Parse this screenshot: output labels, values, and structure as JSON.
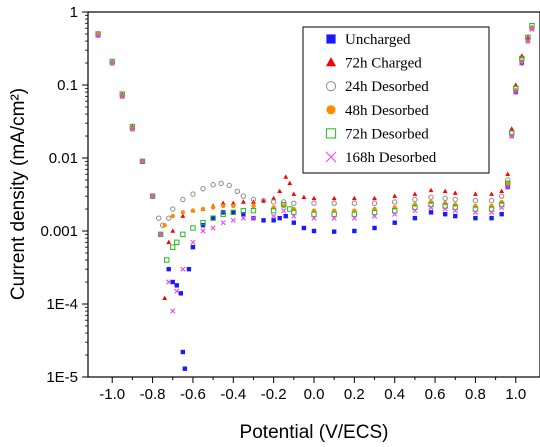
{
  "chart_data": {
    "type": "scatter",
    "xlabel": "Potential (V/ECS)",
    "ylabel": "Current density (mA/cm²)",
    "xlim": [
      -1.12,
      1.12
    ],
    "ylim": [
      1e-05,
      1
    ],
    "yscale": "log",
    "grid": false,
    "legend_position": "top-right",
    "xticks": [
      {
        "value": -1.0,
        "label": "-1.0"
      },
      {
        "value": -0.8,
        "label": "-0.8"
      },
      {
        "value": -0.6,
        "label": "-0.6"
      },
      {
        "value": -0.4,
        "label": "-0.4"
      },
      {
        "value": -0.2,
        "label": "-0.2"
      },
      {
        "value": 0.0,
        "label": "0.0"
      },
      {
        "value": 0.2,
        "label": "0.2"
      },
      {
        "value": 0.4,
        "label": "0.4"
      },
      {
        "value": 0.6,
        "label": "0.6"
      },
      {
        "value": 0.8,
        "label": "0.8"
      },
      {
        "value": 1.0,
        "label": "1.0"
      }
    ],
    "yticks": [
      {
        "value": 1,
        "label": "1"
      },
      {
        "value": 0.1,
        "label": "0.1"
      },
      {
        "value": 0.01,
        "label": "0.01"
      },
      {
        "value": 0.001,
        "label": "0.001"
      },
      {
        "value": 0.0001,
        "label": "1E-4"
      },
      {
        "value": 1e-05,
        "label": "1E-5"
      }
    ],
    "series": [
      {
        "name": "Uncharged",
        "marker": "square-filled",
        "color": "#1a1aff",
        "points": [
          [
            -1.07,
            0.48
          ],
          [
            -1.0,
            0.2
          ],
          [
            -0.95,
            0.07
          ],
          [
            -0.9,
            0.025
          ],
          [
            -0.85,
            0.009
          ],
          [
            -0.8,
            0.003
          ],
          [
            -0.76,
            0.0009
          ],
          [
            -0.72,
            0.0003
          ],
          [
            -0.7,
            0.0002
          ],
          [
            -0.68,
            0.00018
          ],
          [
            -0.66,
            0.00014
          ],
          [
            -0.65,
            2.2e-05
          ],
          [
            -0.64,
            1.3e-05
          ],
          [
            -0.62,
            0.0003
          ],
          [
            -0.6,
            0.0006
          ],
          [
            -0.55,
            0.0012
          ],
          [
            -0.5,
            0.0015
          ],
          [
            -0.45,
            0.0018
          ],
          [
            -0.4,
            0.0018
          ],
          [
            -0.35,
            0.0017
          ],
          [
            -0.3,
            0.0015
          ],
          [
            -0.25,
            0.0014
          ],
          [
            -0.2,
            0.0014
          ],
          [
            -0.17,
            0.0015
          ],
          [
            -0.14,
            0.0016
          ],
          [
            -0.1,
            0.0013
          ],
          [
            -0.05,
            0.0011
          ],
          [
            0.0,
            0.001
          ],
          [
            0.1,
            0.00098
          ],
          [
            0.2,
            0.001
          ],
          [
            0.3,
            0.0011
          ],
          [
            0.4,
            0.0013
          ],
          [
            0.5,
            0.0015
          ],
          [
            0.58,
            0.0018
          ],
          [
            0.65,
            0.0017
          ],
          [
            0.7,
            0.0016
          ],
          [
            0.8,
            0.0015
          ],
          [
            0.88,
            0.0015
          ],
          [
            0.93,
            0.0017
          ],
          [
            0.96,
            0.004
          ],
          [
            0.98,
            0.02
          ],
          [
            1.0,
            0.08
          ],
          [
            1.03,
            0.2
          ],
          [
            1.06,
            0.4
          ],
          [
            1.08,
            0.6
          ]
        ]
      },
      {
        "name": "72h Charged",
        "marker": "triangle-filled",
        "color": "#ff0000",
        "points": [
          [
            -1.07,
            0.5
          ],
          [
            -1.0,
            0.21
          ],
          [
            -0.95,
            0.075
          ],
          [
            -0.9,
            0.027
          ],
          [
            -0.85,
            0.009
          ],
          [
            -0.8,
            0.003
          ],
          [
            -0.76,
            0.0009
          ],
          [
            -0.74,
            0.00012
          ],
          [
            -0.72,
            0.0007
          ],
          [
            -0.7,
            0.001
          ],
          [
            -0.65,
            0.0016
          ],
          [
            -0.6,
            0.0019
          ],
          [
            -0.55,
            0.002
          ],
          [
            -0.5,
            0.0022
          ],
          [
            -0.45,
            0.0024
          ],
          [
            -0.4,
            0.0024
          ],
          [
            -0.35,
            0.0025
          ],
          [
            -0.3,
            0.0025
          ],
          [
            -0.25,
            0.0026
          ],
          [
            -0.2,
            0.0028
          ],
          [
            -0.17,
            0.0035
          ],
          [
            -0.14,
            0.0055
          ],
          [
            -0.12,
            0.0045
          ],
          [
            -0.1,
            0.0032
          ],
          [
            -0.05,
            0.0029
          ],
          [
            0.0,
            0.0028
          ],
          [
            0.1,
            0.0028
          ],
          [
            0.2,
            0.0028
          ],
          [
            0.3,
            0.0028
          ],
          [
            0.4,
            0.003
          ],
          [
            0.5,
            0.0032
          ],
          [
            0.58,
            0.0036
          ],
          [
            0.65,
            0.0035
          ],
          [
            0.7,
            0.0033
          ],
          [
            0.8,
            0.0032
          ],
          [
            0.88,
            0.0032
          ],
          [
            0.93,
            0.0035
          ],
          [
            0.96,
            0.006
          ],
          [
            0.98,
            0.025
          ],
          [
            1.0,
            0.1
          ],
          [
            1.03,
            0.25
          ],
          [
            1.06,
            0.45
          ],
          [
            1.08,
            0.62
          ]
        ]
      },
      {
        "name": "24h Desorbed",
        "marker": "circle-open",
        "color": "#8c8c8c",
        "points": [
          [
            -1.07,
            0.5
          ],
          [
            -1.0,
            0.2
          ],
          [
            -0.95,
            0.07
          ],
          [
            -0.9,
            0.025
          ],
          [
            -0.85,
            0.009
          ],
          [
            -0.8,
            0.003
          ],
          [
            -0.77,
            0.0015
          ],
          [
            -0.75,
            0.0012
          ],
          [
            -0.72,
            0.0015
          ],
          [
            -0.7,
            0.002
          ],
          [
            -0.65,
            0.0027
          ],
          [
            -0.6,
            0.0032
          ],
          [
            -0.55,
            0.0038
          ],
          [
            -0.5,
            0.0043
          ],
          [
            -0.46,
            0.0045
          ],
          [
            -0.42,
            0.0042
          ],
          [
            -0.38,
            0.0035
          ],
          [
            -0.35,
            0.003
          ],
          [
            -0.3,
            0.0027
          ],
          [
            -0.25,
            0.0026
          ],
          [
            -0.2,
            0.0025
          ],
          [
            -0.15,
            0.0025
          ],
          [
            -0.1,
            0.0024
          ],
          [
            0.0,
            0.0024
          ],
          [
            0.1,
            0.0024
          ],
          [
            0.2,
            0.0024
          ],
          [
            0.3,
            0.0024
          ],
          [
            0.4,
            0.0025
          ],
          [
            0.5,
            0.0027
          ],
          [
            0.58,
            0.0029
          ],
          [
            0.65,
            0.0028
          ],
          [
            0.7,
            0.0027
          ],
          [
            0.8,
            0.0026
          ],
          [
            0.88,
            0.0026
          ],
          [
            0.93,
            0.003
          ],
          [
            0.96,
            0.005
          ],
          [
            0.98,
            0.022
          ],
          [
            1.0,
            0.09
          ],
          [
            1.03,
            0.22
          ],
          [
            1.06,
            0.42
          ],
          [
            1.08,
            0.6
          ]
        ]
      },
      {
        "name": "48h Desorbed",
        "marker": "circle-filled",
        "color": "#ff8c00",
        "points": [
          [
            -1.07,
            0.5
          ],
          [
            -1.0,
            0.2
          ],
          [
            -0.95,
            0.07
          ],
          [
            -0.9,
            0.025
          ],
          [
            -0.85,
            0.009
          ],
          [
            -0.8,
            0.003
          ],
          [
            -0.76,
            0.0009
          ],
          [
            -0.74,
            0.0012
          ],
          [
            -0.7,
            0.0016
          ],
          [
            -0.65,
            0.0018
          ],
          [
            -0.6,
            0.0019
          ],
          [
            -0.55,
            0.002
          ],
          [
            -0.5,
            0.0021
          ],
          [
            -0.45,
            0.0022
          ],
          [
            -0.4,
            0.0022
          ],
          [
            -0.3,
            0.0022
          ],
          [
            -0.2,
            0.0021
          ],
          [
            -0.15,
            0.0022
          ],
          [
            -0.1,
            0.002
          ],
          [
            0.0,
            0.0019
          ],
          [
            0.1,
            0.0019
          ],
          [
            0.2,
            0.0019
          ],
          [
            0.3,
            0.002
          ],
          [
            0.4,
            0.0021
          ],
          [
            0.5,
            0.0023
          ],
          [
            0.58,
            0.0025
          ],
          [
            0.65,
            0.0024
          ],
          [
            0.7,
            0.0023
          ],
          [
            0.8,
            0.0022
          ],
          [
            0.88,
            0.0022
          ],
          [
            0.93,
            0.0025
          ],
          [
            0.96,
            0.0045
          ],
          [
            0.98,
            0.02
          ],
          [
            1.0,
            0.085
          ],
          [
            1.03,
            0.21
          ],
          [
            1.06,
            0.4
          ],
          [
            1.08,
            0.6
          ]
        ]
      },
      {
        "name": "72h Desorbed",
        "marker": "square-open",
        "color": "#22bb22",
        "points": [
          [
            -1.07,
            0.5
          ],
          [
            -1.0,
            0.21
          ],
          [
            -0.95,
            0.075
          ],
          [
            -0.9,
            0.027
          ],
          [
            -0.85,
            0.009
          ],
          [
            -0.8,
            0.003
          ],
          [
            -0.76,
            0.0009
          ],
          [
            -0.73,
            0.0004
          ],
          [
            -0.7,
            0.0006
          ],
          [
            -0.68,
            0.0007
          ],
          [
            -0.65,
            0.0009
          ],
          [
            -0.6,
            0.0011
          ],
          [
            -0.55,
            0.0013
          ],
          [
            -0.5,
            0.0015
          ],
          [
            -0.45,
            0.0017
          ],
          [
            -0.4,
            0.0018
          ],
          [
            -0.35,
            0.0019
          ],
          [
            -0.3,
            0.0019
          ],
          [
            -0.2,
            0.0019
          ],
          [
            -0.15,
            0.0023
          ],
          [
            -0.12,
            0.002
          ],
          [
            -0.1,
            0.0018
          ],
          [
            0.0,
            0.0017
          ],
          [
            0.1,
            0.0017
          ],
          [
            0.2,
            0.0017
          ],
          [
            0.3,
            0.0018
          ],
          [
            0.4,
            0.0019
          ],
          [
            0.5,
            0.0021
          ],
          [
            0.58,
            0.0023
          ],
          [
            0.65,
            0.0022
          ],
          [
            0.7,
            0.0021
          ],
          [
            0.8,
            0.002
          ],
          [
            0.88,
            0.002
          ],
          [
            0.93,
            0.0023
          ],
          [
            0.96,
            0.0045
          ],
          [
            0.98,
            0.022
          ],
          [
            1.0,
            0.09
          ],
          [
            1.03,
            0.23
          ],
          [
            1.06,
            0.45
          ],
          [
            1.08,
            0.65
          ]
        ]
      },
      {
        "name": "168h Desorbed",
        "marker": "x",
        "color": "#ee44ee",
        "points": [
          [
            -1.07,
            0.48
          ],
          [
            -1.0,
            0.2
          ],
          [
            -0.95,
            0.07
          ],
          [
            -0.9,
            0.025
          ],
          [
            -0.85,
            0.009
          ],
          [
            -0.8,
            0.003
          ],
          [
            -0.76,
            0.0009
          ],
          [
            -0.72,
            0.0002
          ],
          [
            -0.7,
            8e-05
          ],
          [
            -0.68,
            0.00015
          ],
          [
            -0.65,
            0.0003
          ],
          [
            -0.6,
            0.0007
          ],
          [
            -0.55,
            0.001
          ],
          [
            -0.5,
            0.0011
          ],
          [
            -0.45,
            0.0013
          ],
          [
            -0.4,
            0.0014
          ],
          [
            -0.35,
            0.0015
          ],
          [
            -0.3,
            0.0015
          ],
          [
            -0.2,
            0.0016
          ],
          [
            -0.15,
            0.0019
          ],
          [
            -0.1,
            0.0016
          ],
          [
            0.0,
            0.0015
          ],
          [
            0.1,
            0.0015
          ],
          [
            0.2,
            0.0015
          ],
          [
            0.3,
            0.0016
          ],
          [
            0.4,
            0.0017
          ],
          [
            0.5,
            0.0019
          ],
          [
            0.58,
            0.0021
          ],
          [
            0.65,
            0.002
          ],
          [
            0.7,
            0.0019
          ],
          [
            0.8,
            0.0018
          ],
          [
            0.88,
            0.0018
          ],
          [
            0.93,
            0.0021
          ],
          [
            0.96,
            0.004
          ],
          [
            0.98,
            0.02
          ],
          [
            1.0,
            0.08
          ],
          [
            1.03,
            0.2
          ],
          [
            1.06,
            0.4
          ],
          [
            1.08,
            0.58
          ]
        ]
      }
    ]
  }
}
